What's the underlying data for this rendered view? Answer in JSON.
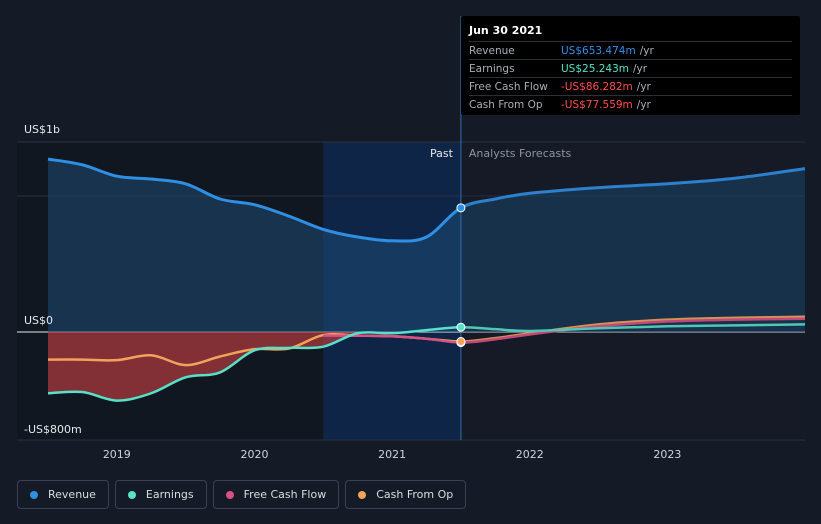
{
  "chart_data": {
    "type": "area",
    "y_axis": {
      "top_label": "US$1b",
      "zero_label": "US$0",
      "bottom_label": "-US$800m",
      "range": [
        -800,
        1000
      ],
      "unit": "US$m"
    },
    "x_axis": {
      "ticks": [
        "2019",
        "2020",
        "2021",
        "2022",
        "2023"
      ],
      "range": [
        2018.5,
        2024.0
      ]
    },
    "divider": {
      "date": 2021.5,
      "past_label": "Past",
      "forecast_label": "Analysts Forecasts"
    },
    "series": [
      {
        "name": "Revenue",
        "color": "#2f8fe3",
        "points": [
          [
            2018.5,
            910
          ],
          [
            2018.75,
            880
          ],
          [
            2019.0,
            820
          ],
          [
            2019.25,
            805
          ],
          [
            2019.5,
            780
          ],
          [
            2019.75,
            700
          ],
          [
            2020.0,
            670
          ],
          [
            2020.25,
            610
          ],
          [
            2020.5,
            540
          ],
          [
            2020.75,
            500
          ],
          [
            2021.0,
            480
          ],
          [
            2021.25,
            500
          ],
          [
            2021.5,
            653.474
          ],
          [
            2021.75,
            700
          ],
          [
            2022.0,
            730
          ],
          [
            2022.5,
            760
          ],
          [
            2023.0,
            780
          ],
          [
            2023.5,
            810
          ],
          [
            2024.0,
            860
          ]
        ]
      },
      {
        "name": "Earnings",
        "color": "#58e0c8",
        "points": [
          [
            2018.5,
            -500
          ],
          [
            2018.75,
            -490
          ],
          [
            2019.0,
            -560
          ],
          [
            2019.25,
            -500
          ],
          [
            2019.5,
            -370
          ],
          [
            2019.75,
            -330
          ],
          [
            2020.0,
            -150
          ],
          [
            2020.25,
            -130
          ],
          [
            2020.5,
            -120
          ],
          [
            2020.75,
            -10
          ],
          [
            2021.0,
            -10
          ],
          [
            2021.25,
            10
          ],
          [
            2021.5,
            25.243
          ],
          [
            2021.75,
            15
          ],
          [
            2022.0,
            5
          ],
          [
            2022.5,
            20
          ],
          [
            2023.0,
            30
          ],
          [
            2023.5,
            35
          ],
          [
            2024.0,
            40
          ]
        ]
      },
      {
        "name": "Free Cash Flow",
        "color": "#d94f86",
        "points": [
          [
            2020.5,
            -30
          ],
          [
            2020.75,
            -30
          ],
          [
            2021.0,
            -35
          ],
          [
            2021.25,
            -55
          ],
          [
            2021.5,
            -86.282
          ],
          [
            2021.75,
            -60
          ],
          [
            2022.0,
            -20
          ],
          [
            2022.5,
            30
          ],
          [
            2023.0,
            55
          ],
          [
            2023.5,
            65
          ],
          [
            2024.0,
            70
          ]
        ]
      },
      {
        "name": "Cash From Op",
        "color": "#f1a35a",
        "points": [
          [
            2018.5,
            -225
          ],
          [
            2018.75,
            -225
          ],
          [
            2019.0,
            -230
          ],
          [
            2019.25,
            -190
          ],
          [
            2019.5,
            -270
          ],
          [
            2019.75,
            -200
          ],
          [
            2020.0,
            -140
          ],
          [
            2020.25,
            -135
          ],
          [
            2020.5,
            -25
          ],
          [
            2020.75,
            -30
          ],
          [
            2021.0,
            -35
          ],
          [
            2021.25,
            -55
          ],
          [
            2021.5,
            -77.559
          ],
          [
            2021.75,
            -50
          ],
          [
            2022.0,
            -10
          ],
          [
            2022.5,
            40
          ],
          [
            2023.0,
            65
          ],
          [
            2023.5,
            75
          ],
          [
            2024.0,
            80
          ]
        ]
      }
    ],
    "tooltip": {
      "date": "Jun 30 2021",
      "rows": [
        {
          "label": "Revenue",
          "value": "US$653.474m",
          "unit": "/yr",
          "color": "#2f8fe3"
        },
        {
          "label": "Earnings",
          "value": "US$25.243m",
          "unit": "/yr",
          "color": "#58e0c8"
        },
        {
          "label": "Free Cash Flow",
          "value": "-US$86.282m",
          "unit": "/yr",
          "color": "#ff4d4d"
        },
        {
          "label": "Cash From Op",
          "value": "-US$77.559m",
          "unit": "/yr",
          "color": "#ff4d4d"
        }
      ]
    }
  },
  "legend": [
    {
      "label": "Revenue",
      "color": "#2f8fe3"
    },
    {
      "label": "Earnings",
      "color": "#58e0c8"
    },
    {
      "label": "Free Cash Flow",
      "color": "#d94f86"
    },
    {
      "label": "Cash From Op",
      "color": "#f1a35a"
    }
  ]
}
